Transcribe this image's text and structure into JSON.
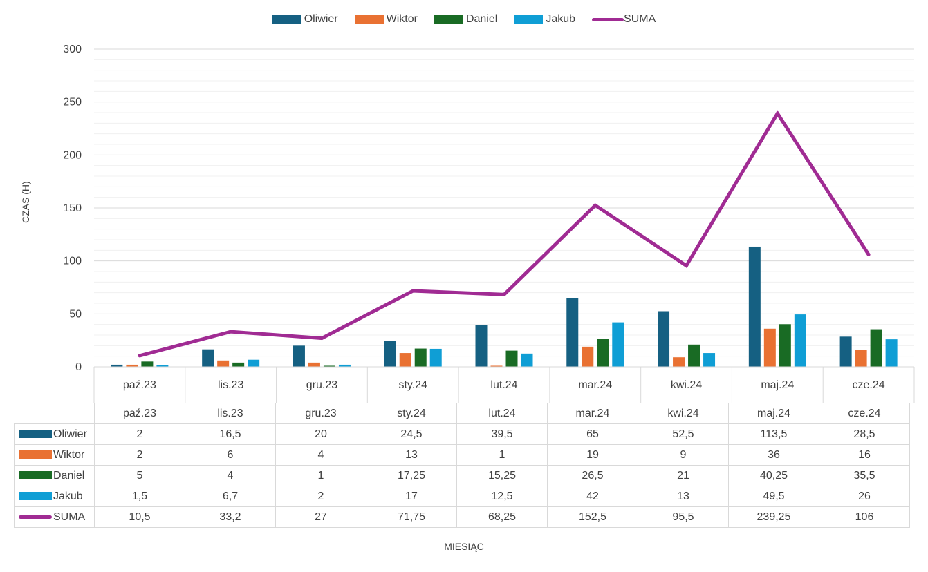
{
  "chart_data": {
    "type": "bar",
    "categories": [
      "paź.23",
      "lis.23",
      "gru.23",
      "sty.24",
      "lut.24",
      "mar.24",
      "kwi.24",
      "maj.24",
      "cze.24"
    ],
    "series": [
      {
        "name": "Oliwier",
        "kind": "bar",
        "color": "#156082",
        "values": [
          "2",
          "16,5",
          "20",
          "24,5",
          "39,5",
          "65",
          "52,5",
          "113,5",
          "28,5"
        ]
      },
      {
        "name": "Wiktor",
        "kind": "bar",
        "color": "#E97132",
        "values": [
          "2",
          "6",
          "4",
          "13",
          "1",
          "19",
          "9",
          "36",
          "16"
        ]
      },
      {
        "name": "Daniel",
        "kind": "bar",
        "color": "#196B24",
        "values": [
          "5",
          "4",
          "1",
          "17,25",
          "15,25",
          "26,5",
          "21",
          "40,25",
          "35,5"
        ]
      },
      {
        "name": "Jakub",
        "kind": "bar",
        "color": "#0F9ED5",
        "values": [
          "1,5",
          "6,7",
          "2",
          "17",
          "12,5",
          "42",
          "13",
          "49,5",
          "26"
        ]
      },
      {
        "name": "SUMA",
        "kind": "line",
        "color": "#A02B93",
        "values": [
          "10,5",
          "33,2",
          "27",
          "71,75",
          "68,25",
          "152,5",
          "95,5",
          "239,25",
          "106"
        ]
      }
    ],
    "ylabel": "CZAS (H)",
    "xlabel": "MIESIĄC",
    "ylim": [
      0,
      300
    ],
    "yticks": [
      "0",
      "50",
      "100",
      "150",
      "200",
      "250",
      "300"
    ],
    "grid": true,
    "legend": "top-center"
  }
}
